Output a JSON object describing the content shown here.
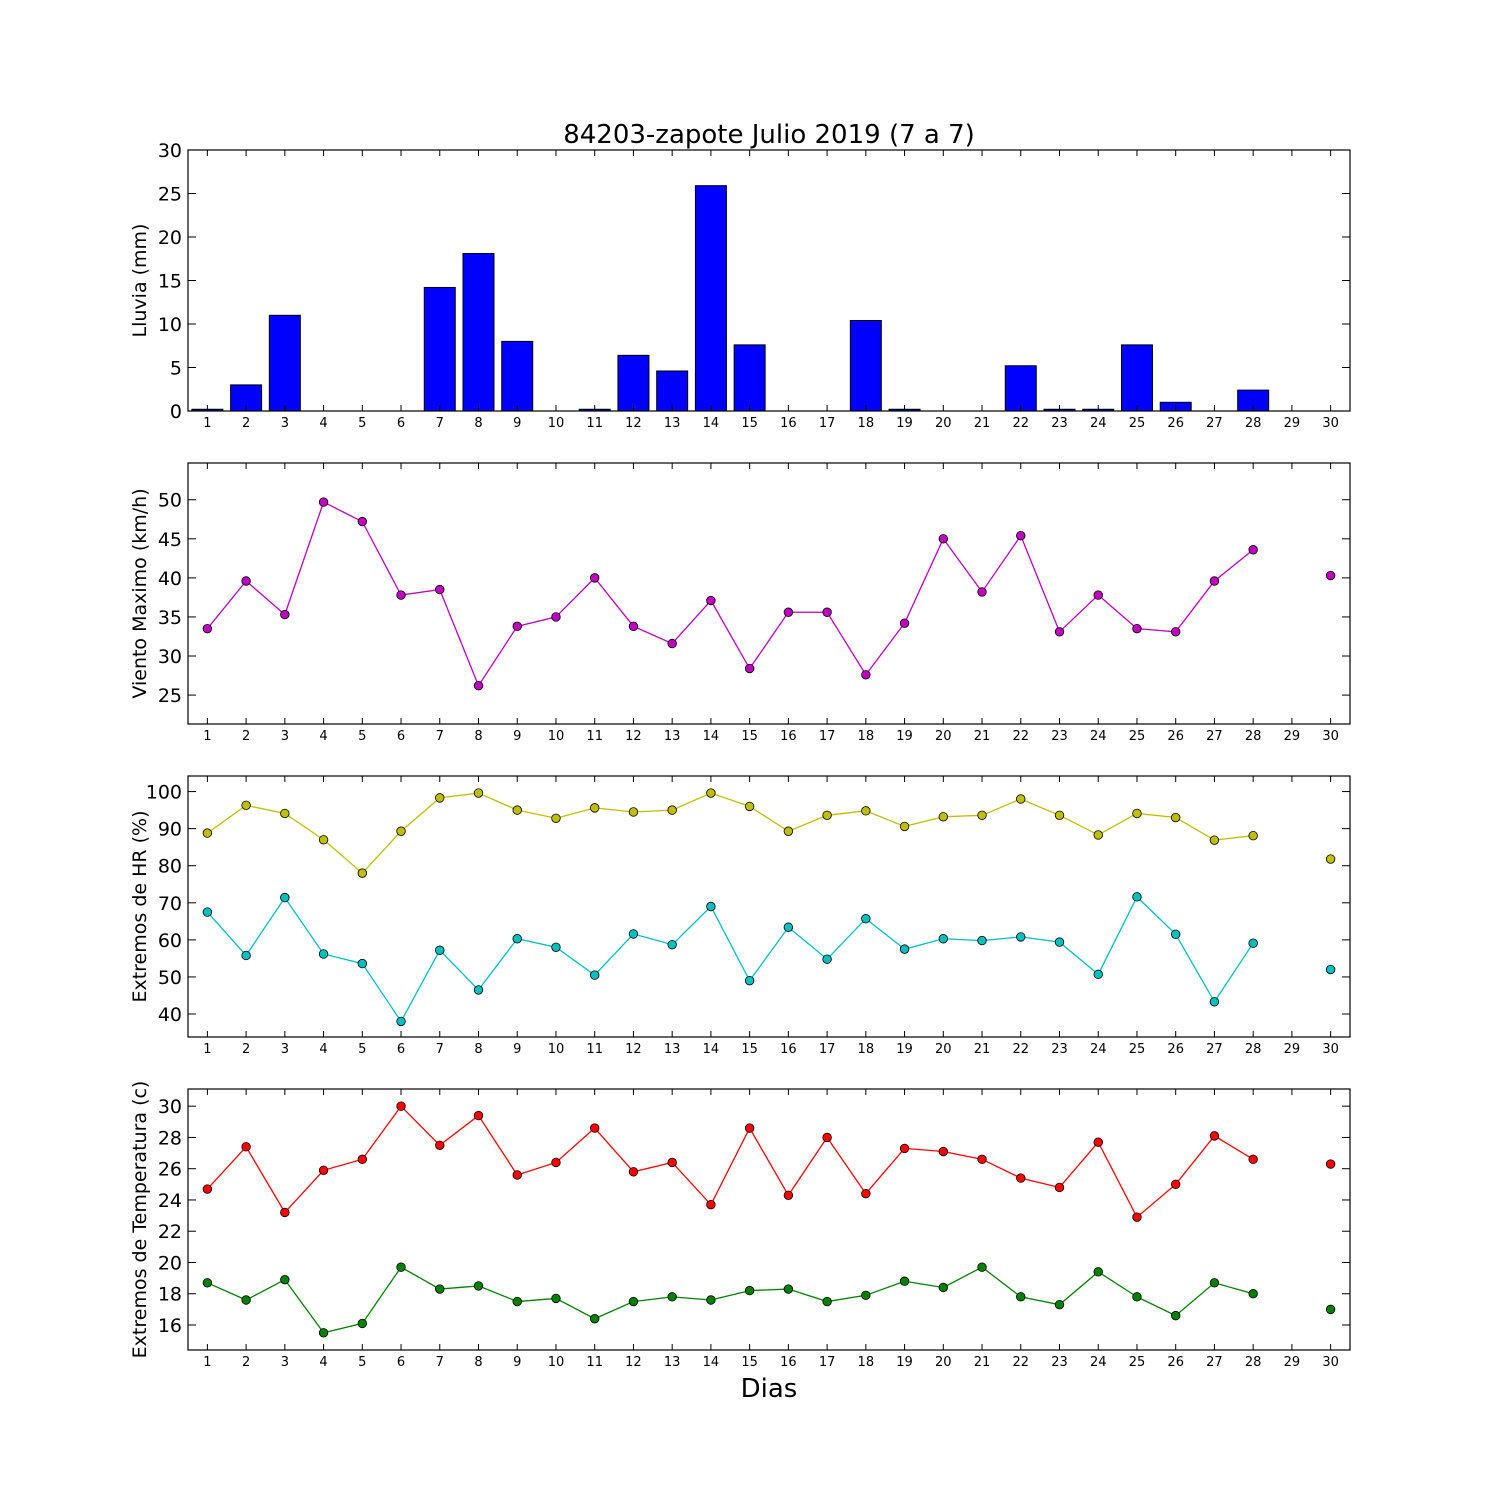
{
  "figure": {
    "title": "84203-zapote Julio 2019  (7 a 7)",
    "xlabel": "Dias"
  },
  "chart_data": [
    {
      "type": "bar",
      "ylabel": "Lluvia (mm)",
      "x": [
        1,
        2,
        3,
        4,
        5,
        6,
        7,
        8,
        9,
        10,
        11,
        12,
        13,
        14,
        15,
        16,
        17,
        18,
        19,
        20,
        21,
        22,
        23,
        24,
        25,
        26,
        27,
        28,
        29,
        30
      ],
      "xlim": [
        0.5,
        30.5
      ],
      "ylim": [
        0,
        30
      ],
      "yticks": [
        0,
        5,
        10,
        15,
        20,
        25,
        30
      ],
      "series": [
        {
          "color": "#0000ff",
          "values": [
            0.2,
            3.0,
            11.0,
            0,
            0,
            0,
            14.2,
            18.1,
            8.0,
            0,
            0.2,
            6.4,
            4.6,
            25.9,
            7.6,
            0,
            0,
            10.4,
            0.2,
            0,
            0,
            5.2,
            0.2,
            0.2,
            7.6,
            1.0,
            0,
            2.4,
            0,
            0
          ]
        }
      ],
      "grid": false
    },
    {
      "type": "line",
      "ylabel": "Viento Maximo (km/h)",
      "x": [
        1,
        2,
        3,
        4,
        5,
        6,
        7,
        8,
        9,
        10,
        11,
        12,
        13,
        14,
        15,
        16,
        17,
        18,
        19,
        20,
        21,
        22,
        23,
        24,
        25,
        26,
        27,
        28,
        29,
        30
      ],
      "xlim": [
        0.5,
        30.5
      ],
      "ylim": [
        21.3,
        54.7
      ],
      "yticks": [
        25,
        30,
        35,
        40,
        45,
        50
      ],
      "series": [
        {
          "color": "#bf00bf",
          "values": [
            33.5,
            39.6,
            35.3,
            49.7,
            47.2,
            37.8,
            38.5,
            26.2,
            33.8,
            35.0,
            40.0,
            33.8,
            31.6,
            37.1,
            28.4,
            35.6,
            35.6,
            27.6,
            34.2,
            45.0,
            38.2,
            45.4,
            33.1,
            37.8,
            33.5,
            33.1,
            39.6,
            43.6,
            null,
            40.3
          ]
        }
      ],
      "grid": false
    },
    {
      "type": "line",
      "ylabel": "Extremos de HR (%)",
      "x": [
        1,
        2,
        3,
        4,
        5,
        6,
        7,
        8,
        9,
        10,
        11,
        12,
        13,
        14,
        15,
        16,
        17,
        18,
        19,
        20,
        21,
        22,
        23,
        24,
        25,
        26,
        27,
        28,
        29,
        30
      ],
      "xlim": [
        0.5,
        30.5
      ],
      "ylim": [
        33.8,
        104.2
      ],
      "yticks": [
        40,
        50,
        60,
        70,
        80,
        90,
        100
      ],
      "series": [
        {
          "color": "#bfbf00",
          "values": [
            88.8,
            96.3,
            94.1,
            87.0,
            78.0,
            89.3,
            98.3,
            99.6,
            95.0,
            92.8,
            95.6,
            94.5,
            95.0,
            99.6,
            96.0,
            89.3,
            93.6,
            94.8,
            90.6,
            93.2,
            93.6,
            98.0,
            93.6,
            88.3,
            94.1,
            93.0,
            86.9,
            88.1,
            null,
            81.8
          ]
        },
        {
          "color": "#00bfbf",
          "values": [
            67.5,
            55.8,
            71.4,
            56.2,
            53.6,
            38.0,
            57.2,
            46.5,
            60.3,
            58.0,
            50.5,
            61.6,
            58.7,
            69.0,
            49.0,
            63.4,
            54.8,
            65.7,
            57.5,
            60.3,
            59.8,
            60.8,
            59.4,
            50.7,
            71.6,
            61.5,
            43.3,
            59.1,
            null,
            52.0
          ]
        }
      ],
      "grid": false
    },
    {
      "type": "line",
      "ylabel": "Extremos de Temperatura (c)",
      "x": [
        1,
        2,
        3,
        4,
        5,
        6,
        7,
        8,
        9,
        10,
        11,
        12,
        13,
        14,
        15,
        16,
        17,
        18,
        19,
        20,
        21,
        22,
        23,
        24,
        25,
        26,
        27,
        28,
        29,
        30
      ],
      "xlim": [
        0.5,
        30.5
      ],
      "ylim": [
        14.4,
        31.1
      ],
      "yticks": [
        16,
        18,
        20,
        22,
        24,
        26,
        28,
        30
      ],
      "series": [
        {
          "color": "#ff0000",
          "values": [
            24.7,
            27.4,
            23.2,
            25.9,
            26.6,
            30.0,
            27.5,
            29.4,
            25.6,
            26.4,
            28.6,
            25.8,
            26.4,
            23.7,
            28.6,
            24.3,
            28.0,
            24.4,
            27.3,
            27.1,
            26.6,
            25.4,
            24.8,
            27.7,
            22.9,
            25.0,
            28.1,
            26.6,
            null,
            26.3
          ]
        },
        {
          "color": "#008000",
          "values": [
            18.7,
            17.6,
            18.9,
            15.5,
            16.1,
            19.7,
            18.3,
            18.5,
            17.5,
            17.7,
            16.4,
            17.5,
            17.8,
            17.6,
            18.2,
            18.3,
            17.5,
            17.9,
            18.8,
            18.4,
            19.7,
            17.8,
            17.3,
            19.4,
            17.8,
            16.6,
            18.7,
            18.0,
            null,
            17.0
          ]
        }
      ],
      "grid": false
    }
  ]
}
